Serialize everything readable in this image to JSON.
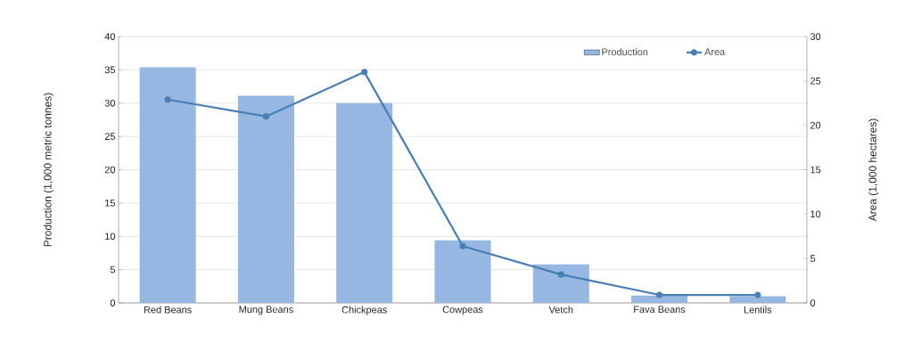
{
  "chart_data": {
    "type": "bar",
    "ylabel": "Production (1,000 metric tonnes)",
    "y2label": "Area (1,000 hectares)",
    "categories": [
      "Red Beans",
      "Mung Beans",
      "Chickpeas",
      "Cowpeas",
      "Vetch",
      "Fava Beans",
      "Lentils"
    ],
    "series": [
      {
        "name": "Production",
        "color": "#95b7e1",
        "values": [
          35.4,
          31.1,
          30.0,
          9.4,
          5.8,
          1.1,
          1.0
        ]
      },
      {
        "name": "Area",
        "type": "line",
        "axis": "y2",
        "color": "#4a7fb5",
        "marker": "circle",
        "values": [
          22.9,
          21.0,
          26.0,
          6.4,
          3.2,
          0.9,
          0.9
        ]
      }
    ],
    "ylim": [
      0,
      40
    ],
    "yticks": [
      0,
      5,
      10,
      15,
      20,
      25,
      30,
      35,
      40
    ],
    "y2lim": [
      0,
      30
    ],
    "y2ticks": [
      0,
      5,
      10,
      15,
      20,
      25,
      30
    ],
    "grid": "y",
    "legend": "top right"
  }
}
